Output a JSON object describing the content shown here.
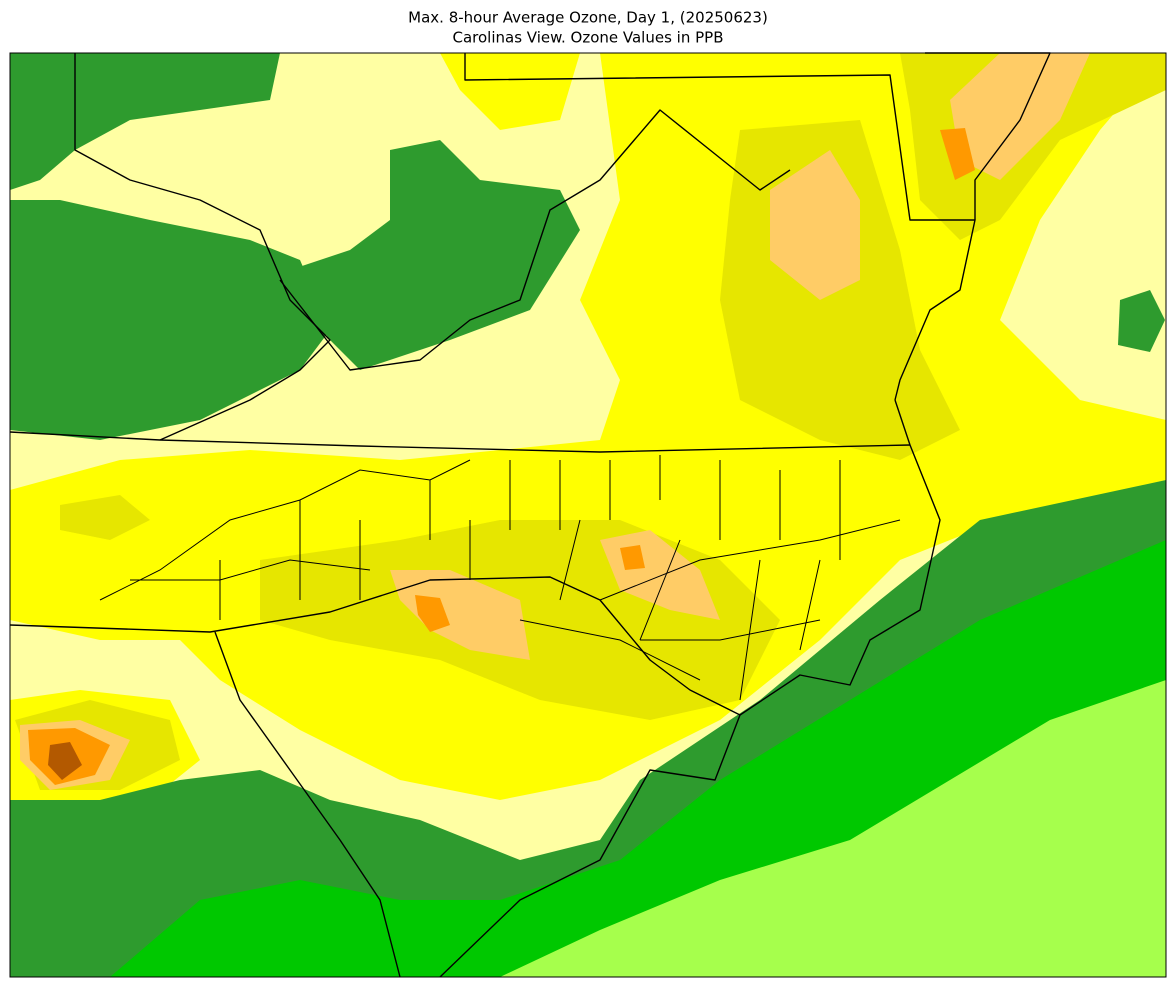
{
  "title": "Max. 8-hour Average Ozone, Day 1, (20250623)",
  "subtitle": "Carolinas View. Ozone Values in PPB"
}
